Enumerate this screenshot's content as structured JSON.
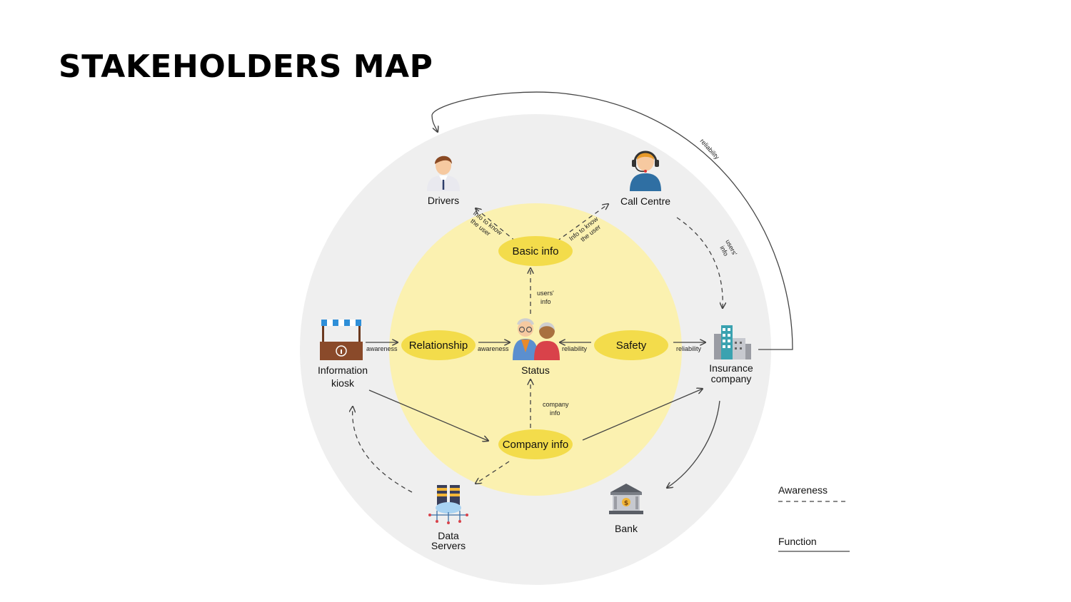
{
  "title": "STAKEHOLDERS MAP",
  "stakeholders": {
    "drivers": "Drivers",
    "call_centre": "Call Centre",
    "information_kiosk": [
      "Information",
      "kiosk"
    ],
    "insurance_company": [
      "Insurance",
      "company"
    ],
    "data_servers": [
      "Data",
      "Servers"
    ],
    "bank": "Bank"
  },
  "center": {
    "status": "Status"
  },
  "nodes": {
    "basic_info": "Basic info",
    "relationship": "Relationship",
    "safety": "Safety",
    "company_info": "Company info"
  },
  "edge_labels": {
    "info_to_know_left": [
      "Info to know",
      "the user"
    ],
    "info_to_know_right": [
      "Info to know",
      "the user"
    ],
    "users_info_center": [
      "users'",
      "info"
    ],
    "users_info_right": [
      "users'",
      "info"
    ],
    "awareness_kiosk": "awareness",
    "awareness_relationship": "awareness",
    "reliability_safety": "reliability",
    "reliability_insurance": "reliability",
    "company_info": [
      "company",
      "info"
    ],
    "reliability_arc": "reliability"
  },
  "legend": {
    "awareness": "Awareness",
    "function": "Function"
  },
  "colors": {
    "outer_circle": "#efefef",
    "inner_circle": "#fbf1b0",
    "node_fill": "#f3dc4b",
    "line": "#444444"
  }
}
